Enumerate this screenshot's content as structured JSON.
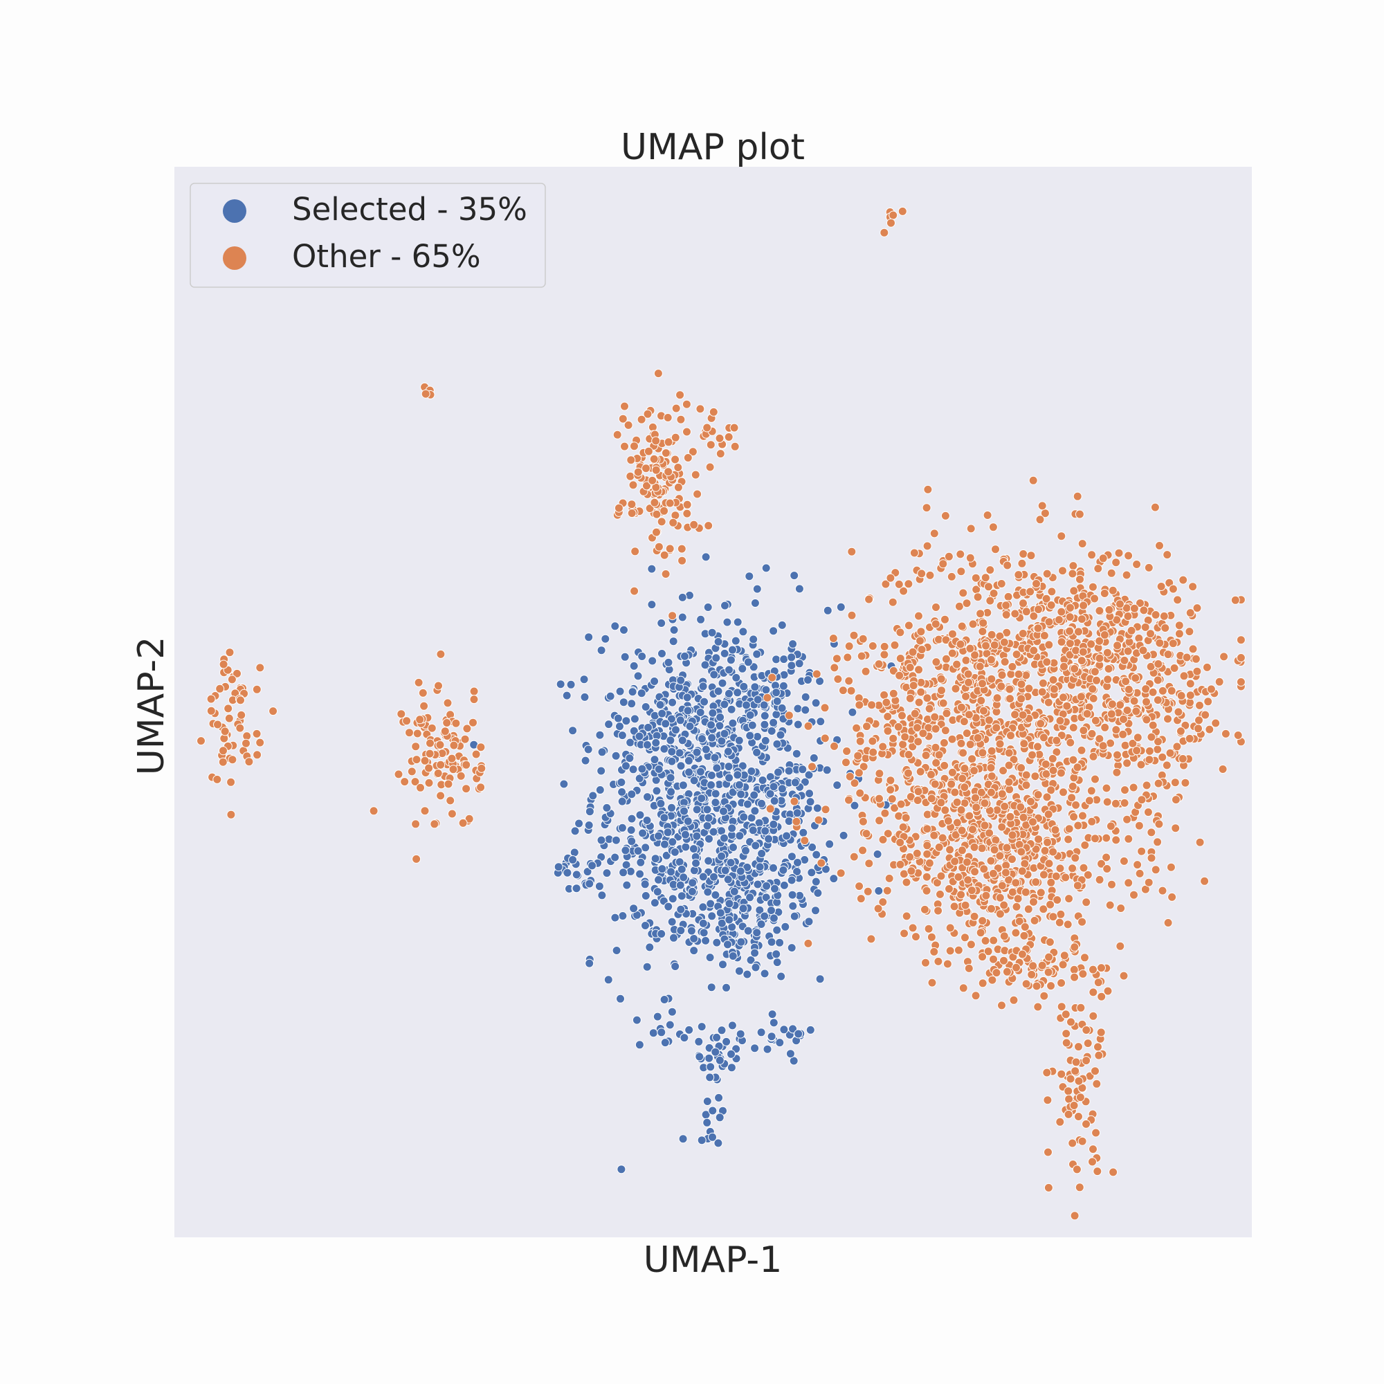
{
  "chart_data": {
    "type": "scatter",
    "title": "UMAP plot",
    "xlabel": "UMAP-1",
    "ylabel": "UMAP-2",
    "xlim": [
      0,
      100
    ],
    "ylim": [
      0,
      100
    ],
    "ticks_shown": false,
    "grid": false,
    "legend_position": "upper-left",
    "background": "#eaeaf2",
    "series": [
      {
        "name": "Selected - 35%",
        "color": "#4c72b0",
        "clusters": [
          {
            "cx": 50,
            "cy": 42,
            "sx": 5.5,
            "sy": 8.5,
            "n": 780
          },
          {
            "cx": 47,
            "cy": 48,
            "sx": 3.5,
            "sy": 2.5,
            "n": 120
          },
          {
            "cx": 52,
            "cy": 30,
            "sx": 3.0,
            "sy": 3.0,
            "n": 120
          },
          {
            "cx": 56,
            "cy": 37,
            "sx": 3.2,
            "sy": 4.0,
            "n": 100
          },
          {
            "cx": 46,
            "cy": 37,
            "sx": 2.5,
            "sy": 3.0,
            "n": 60
          },
          {
            "cx": 55,
            "cy": 51,
            "sx": 1.6,
            "sy": 1.6,
            "n": 30
          },
          {
            "cx": 50.5,
            "cy": 17,
            "sx": 1.0,
            "sy": 1.0,
            "n": 30
          },
          {
            "cx": 46,
            "cy": 19,
            "sx": 1.5,
            "sy": 0.8,
            "n": 14
          },
          {
            "cx": 56,
            "cy": 19,
            "sx": 1.8,
            "sy": 0.8,
            "n": 22
          },
          {
            "cx": 38,
            "cy": 34,
            "sx": 1.5,
            "sy": 1.2,
            "n": 20
          },
          {
            "cx": 50,
            "cy": 12,
            "sx": 0.6,
            "sy": 1.2,
            "n": 12
          }
        ]
      },
      {
        "name": "Other - 65%",
        "color": "#dd8452",
        "clusters": [
          {
            "cx": 79,
            "cy": 52,
            "sx": 8.0,
            "sy": 6.5,
            "n": 900
          },
          {
            "cx": 77,
            "cy": 36,
            "sx": 6.0,
            "sy": 5.0,
            "n": 600
          },
          {
            "cx": 69,
            "cy": 44,
            "sx": 4.5,
            "sy": 5.0,
            "n": 200
          },
          {
            "cx": 92,
            "cy": 50,
            "sx": 2.5,
            "sy": 4.5,
            "n": 120
          },
          {
            "cx": 85,
            "cy": 55,
            "sx": 3.0,
            "sy": 3.5,
            "n": 120
          },
          {
            "cx": 80,
            "cy": 25,
            "sx": 3.5,
            "sy": 1.5,
            "n": 80
          },
          {
            "cx": 84,
            "cy": 58,
            "sx": 3.5,
            "sy": 1.2,
            "n": 20
          },
          {
            "cx": 84,
            "cy": 14,
            "sx": 1.2,
            "sy": 3.8,
            "n": 70
          },
          {
            "cx": 45,
            "cy": 71,
            "sx": 1.8,
            "sy": 4.0,
            "n": 140
          },
          {
            "cx": 50,
            "cy": 75,
            "sx": 1.0,
            "sy": 1.0,
            "n": 18
          },
          {
            "cx": 25,
            "cy": 45,
            "sx": 1.8,
            "sy": 3.5,
            "n": 110
          },
          {
            "cx": 5.5,
            "cy": 48,
            "sx": 1.2,
            "sy": 3.2,
            "n": 60
          },
          {
            "cx": 23.5,
            "cy": 79,
            "sx": 0.3,
            "sy": 0.3,
            "n": 4
          },
          {
            "cx": 66.5,
            "cy": 95,
            "sx": 0.6,
            "sy": 0.6,
            "n": 6
          }
        ]
      }
    ]
  }
}
